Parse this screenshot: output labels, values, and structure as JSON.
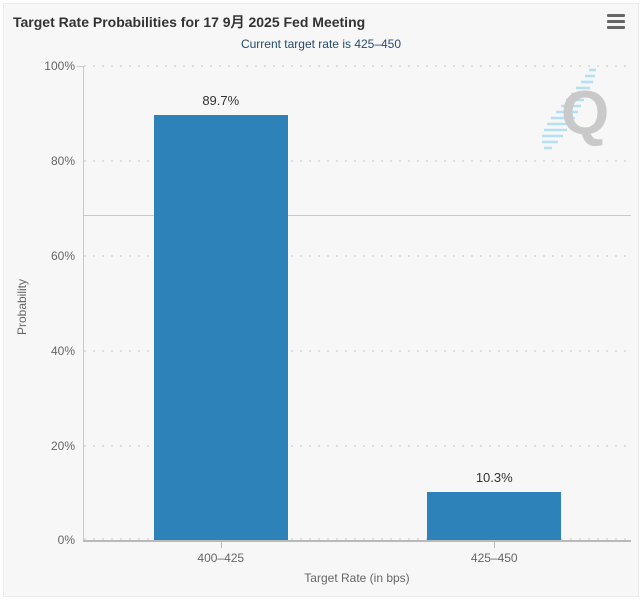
{
  "header": {
    "title": "Target Rate Probabilities for 17 9月 2025 Fed Meeting",
    "subtitle": "Current target rate is 425–450",
    "menu_icon": "hamburger-icon"
  },
  "watermark": {
    "letter": "Q"
  },
  "chart_data": {
    "type": "bar",
    "title": "Target Rate Probabilities for 17 9月 2025 Fed Meeting",
    "subtitle": "Current target rate is 425–450",
    "categories": [
      "400–425",
      "425–450"
    ],
    "values": [
      89.7,
      10.3
    ],
    "data_labels": [
      "89.7%",
      "10.3%"
    ],
    "xlabel": "Target Rate (in bps)",
    "ylabel": "Probability",
    "ylim": [
      0,
      100
    ],
    "ytick_labels": [
      "100%",
      "80%",
      "60%",
      "40%",
      "20%",
      "0%"
    ],
    "grid": "horizontal dotted lines every 20%",
    "plot_line_y": 68.7,
    "legend": "none",
    "bar_color": "#2d82ba",
    "background_color": "#f7f7f7"
  }
}
